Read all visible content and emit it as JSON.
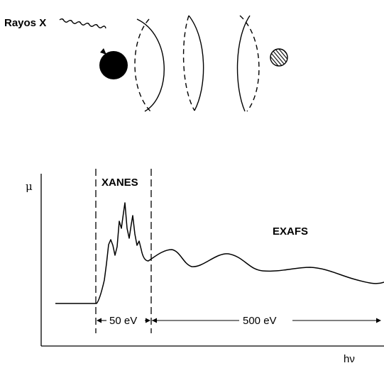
{
  "diagram": {
    "xray_label": "Rayos X",
    "xanes_label": "XANES",
    "exafs_label": "EXAFS",
    "y_axis_symbol": "μ",
    "x_axis_symbol": "hν",
    "xanes_width_label": "50 eV",
    "exafs_width_label": "500 eV"
  },
  "colors": {
    "ink": "#000000",
    "background": "#ffffff"
  }
}
